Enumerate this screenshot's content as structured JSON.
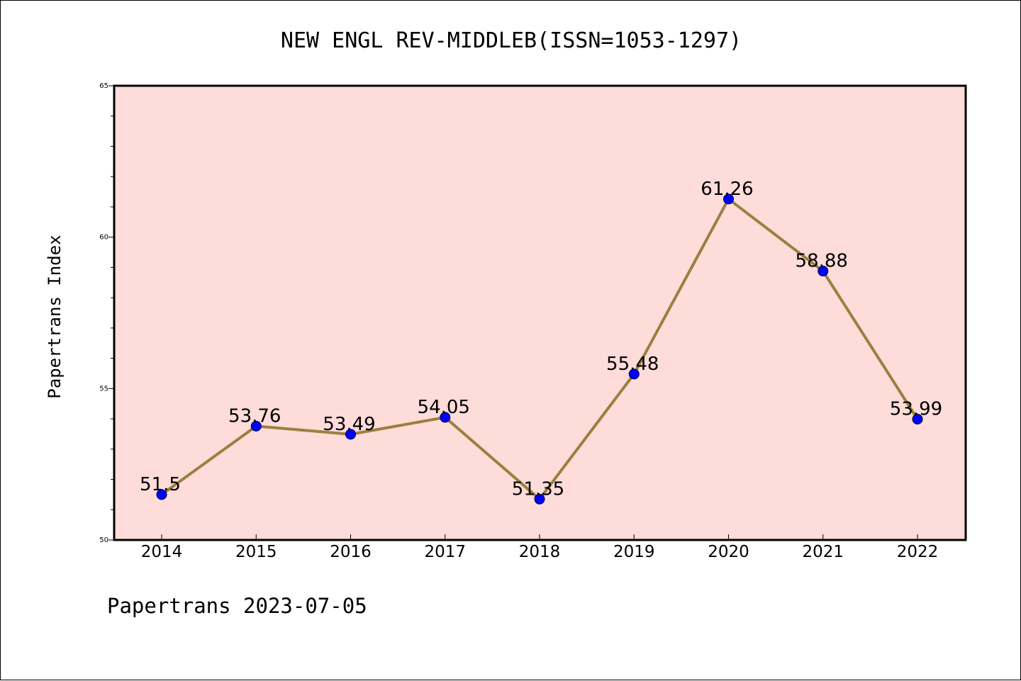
{
  "chart_data": {
    "type": "line",
    "title": "NEW ENGL REV-MIDDLEB(ISSN=1053-1297)",
    "ylabel": "Papertrans Index",
    "xlabel": "",
    "footer": "Papertrans 2023-07-05",
    "categories": [
      "2014",
      "2015",
      "2016",
      "2017",
      "2018",
      "2019",
      "2020",
      "2021",
      "2022"
    ],
    "values": [
      51.5,
      53.76,
      53.49,
      54.05,
      51.35,
      55.48,
      61.26,
      58.88,
      53.99
    ],
    "data_labels": [
      "51.5",
      "53.76",
      "53.49",
      "54.05",
      "51.35",
      "55.48",
      "61.26",
      "58.88",
      "53.99"
    ],
    "ylim": [
      50,
      65
    ],
    "yticks": [
      "50",
      "55",
      "60",
      "65"
    ],
    "grid": false,
    "colors": {
      "plot_background": "#fddcd9",
      "line": "#9a8040",
      "marker": "#0000ff",
      "marker_edge": "#000044"
    }
  }
}
